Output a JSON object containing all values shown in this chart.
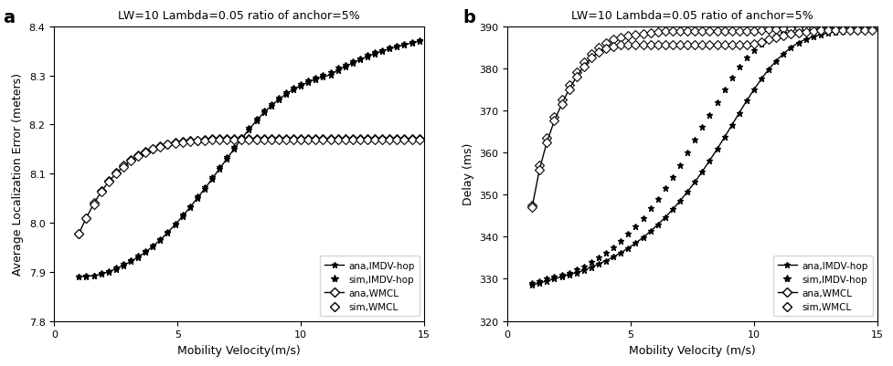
{
  "title_a": "LW=10 Lambda=0.05 ratio of anchor=5%",
  "title_b": "LW=10 Lambda=0.05 ratio of anchor=5%",
  "xlabel_a": "Mobility Velocity(m/s)",
  "xlabel_b": "Mobility Velocity (m/s)",
  "ylabel_a": "Average Localization Error (meters)",
  "ylabel_b": "Delay (ms)",
  "label_a": "a",
  "label_b": "b",
  "xlim": [
    0,
    15
  ],
  "ylim_a": [
    7.8,
    8.4
  ],
  "ylim_b": [
    320,
    390
  ],
  "yticks_a": [
    7.8,
    7.9,
    8.0,
    8.1,
    8.2,
    8.3,
    8.4
  ],
  "yticks_b": [
    320,
    330,
    340,
    350,
    360,
    370,
    380,
    390
  ],
  "xticks": [
    0,
    5,
    10,
    15
  ],
  "x_dense": [
    1.0,
    1.3,
    1.6,
    1.9,
    2.2,
    2.5,
    2.8,
    3.1,
    3.4,
    3.7,
    4.0,
    4.3,
    4.6,
    4.9,
    5.2,
    5.5,
    5.8,
    6.1,
    6.4,
    6.7,
    7.0,
    7.3,
    7.6,
    7.9,
    8.2,
    8.5,
    8.8,
    9.1,
    9.4,
    9.7,
    10.0,
    10.3,
    10.6,
    10.9,
    11.2,
    11.5,
    11.8,
    12.1,
    12.4,
    12.7,
    13.0,
    13.3,
    13.6,
    13.9,
    14.2,
    14.5,
    14.8
  ],
  "ana_imdv_a": [
    7.89,
    7.891,
    7.892,
    7.895,
    7.9,
    7.906,
    7.913,
    7.921,
    7.93,
    7.94,
    7.952,
    7.965,
    7.98,
    7.996,
    8.013,
    8.031,
    8.05,
    8.069,
    8.089,
    8.11,
    8.13,
    8.151,
    8.171,
    8.19,
    8.208,
    8.224,
    8.238,
    8.251,
    8.262,
    8.271,
    8.279,
    8.286,
    8.292,
    8.297,
    8.301,
    8.31,
    8.318,
    8.325,
    8.332,
    8.338,
    8.344,
    8.349,
    8.354,
    8.358,
    8.362,
    8.366,
    8.369
  ],
  "sim_imdv_a": [
    7.89,
    7.892,
    7.893,
    7.897,
    7.902,
    7.909,
    7.916,
    7.924,
    7.933,
    7.943,
    7.954,
    7.967,
    7.982,
    7.998,
    8.016,
    8.034,
    8.053,
    8.073,
    8.093,
    8.114,
    8.134,
    8.155,
    8.175,
    8.194,
    8.212,
    8.228,
    8.242,
    8.255,
    8.266,
    8.275,
    8.283,
    8.29,
    8.296,
    8.301,
    8.306,
    8.315,
    8.322,
    8.329,
    8.335,
    8.341,
    8.347,
    8.352,
    8.357,
    8.361,
    8.365,
    8.368,
    8.372
  ],
  "ana_wmcl_a": [
    7.978,
    8.01,
    8.038,
    8.063,
    8.083,
    8.1,
    8.114,
    8.126,
    8.135,
    8.143,
    8.15,
    8.155,
    8.159,
    8.162,
    8.164,
    8.166,
    8.167,
    8.168,
    8.169,
    8.169,
    8.169,
    8.169,
    8.169,
    8.169,
    8.169,
    8.169,
    8.169,
    8.169,
    8.169,
    8.169,
    8.169,
    8.169,
    8.169,
    8.169,
    8.169,
    8.169,
    8.169,
    8.169,
    8.169,
    8.169,
    8.169,
    8.169,
    8.169,
    8.169,
    8.169,
    8.169,
    8.169
  ],
  "sim_wmcl_a": [
    7.978,
    8.01,
    8.04,
    8.065,
    8.086,
    8.103,
    8.117,
    8.128,
    8.137,
    8.145,
    8.151,
    8.156,
    8.16,
    8.163,
    8.165,
    8.167,
    8.168,
    8.169,
    8.17,
    8.17,
    8.17,
    8.17,
    8.17,
    8.17,
    8.17,
    8.17,
    8.17,
    8.17,
    8.17,
    8.17,
    8.17,
    8.17,
    8.17,
    8.17,
    8.17,
    8.17,
    8.17,
    8.17,
    8.17,
    8.17,
    8.17,
    8.17,
    8.17,
    8.17,
    8.17,
    8.17,
    8.17
  ],
  "ana_imdv_b": [
    328.5,
    329.0,
    329.5,
    330.0,
    330.5,
    331.0,
    331.5,
    332.0,
    332.8,
    333.5,
    334.3,
    335.2,
    336.2,
    337.3,
    338.5,
    339.8,
    341.3,
    342.9,
    344.6,
    346.5,
    348.5,
    350.7,
    353.0,
    355.5,
    358.1,
    360.8,
    363.6,
    366.5,
    369.4,
    372.3,
    375.0,
    377.5,
    379.8,
    381.8,
    383.5,
    385.0,
    386.1,
    386.9,
    387.5,
    388.0,
    388.4,
    388.7,
    388.9,
    389.0,
    389.1,
    389.1,
    389.1
  ],
  "sim_imdv_b": [
    329.0,
    329.5,
    330.0,
    330.5,
    331.0,
    331.5,
    332.2,
    333.0,
    333.9,
    335.0,
    336.2,
    337.5,
    339.0,
    340.7,
    342.5,
    344.5,
    346.7,
    349.0,
    351.5,
    354.2,
    357.0,
    360.0,
    363.0,
    366.0,
    369.0,
    372.0,
    375.0,
    377.8,
    380.3,
    382.5,
    384.3,
    385.8,
    387.0,
    387.8,
    388.4,
    388.8,
    389.0,
    389.2,
    389.3,
    389.4,
    389.5,
    389.5,
    389.5,
    389.5,
    389.5,
    389.5,
    389.5
  ],
  "ana_wmcl_b": [
    347.0,
    356.0,
    362.5,
    367.5,
    371.5,
    375.0,
    378.0,
    380.5,
    382.5,
    383.8,
    384.7,
    385.2,
    385.5,
    385.5,
    385.5,
    385.5,
    385.5,
    385.5,
    385.5,
    385.5,
    385.5,
    385.5,
    385.5,
    385.5,
    385.5,
    385.5,
    385.5,
    385.5,
    385.5,
    385.5,
    385.8,
    386.2,
    386.8,
    387.3,
    387.8,
    388.2,
    388.5,
    388.7,
    388.9,
    389.0,
    389.1,
    389.1,
    389.1,
    389.1,
    389.1,
    389.1,
    389.1
  ],
  "sim_wmcl_b": [
    347.5,
    357.0,
    363.5,
    368.5,
    372.5,
    376.0,
    379.0,
    381.5,
    383.5,
    385.0,
    386.0,
    386.8,
    387.3,
    387.7,
    388.0,
    388.3,
    388.5,
    388.7,
    388.8,
    388.8,
    388.8,
    388.8,
    388.8,
    388.8,
    388.8,
    388.8,
    388.8,
    388.8,
    388.8,
    388.8,
    388.8,
    389.0,
    389.2,
    389.3,
    389.5,
    389.5,
    389.5,
    389.5,
    389.5,
    389.5,
    389.5,
    389.5,
    389.5,
    389.5,
    389.5,
    389.5,
    389.5
  ],
  "color_line": "#000000",
  "lw": 1.0
}
